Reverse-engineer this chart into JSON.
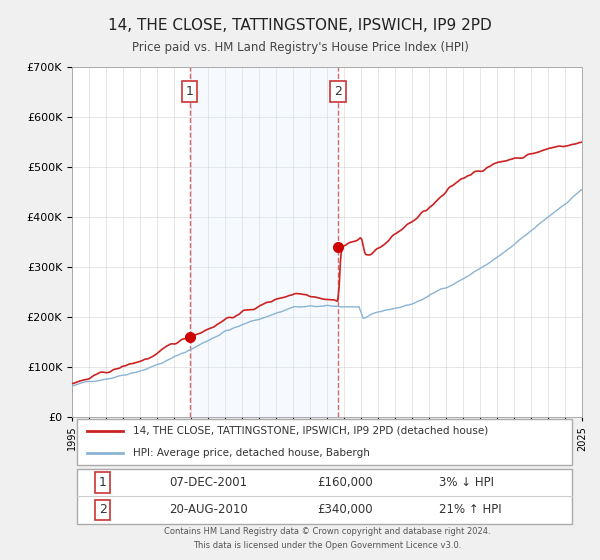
{
  "title": "14, THE CLOSE, TATTINGSTONE, IPSWICH, IP9 2PD",
  "subtitle": "Price paid vs. HM Land Registry's House Price Index (HPI)",
  "legend_line1": "14, THE CLOSE, TATTINGSTONE, IPSWICH, IP9 2PD (detached house)",
  "legend_line2": "HPI: Average price, detached house, Babergh",
  "table_row1_num": "1",
  "table_row1_date": "07-DEC-2001",
  "table_row1_price": "£160,000",
  "table_row1_hpi": "3% ↓ HPI",
  "table_row2_num": "2",
  "table_row2_date": "20-AUG-2010",
  "table_row2_price": "£340,000",
  "table_row2_hpi": "21% ↑ HPI",
  "footer1": "Contains HM Land Registry data © Crown copyright and database right 2024.",
  "footer2": "This data is licensed under the Open Government Licence v3.0.",
  "transaction1_year": 2001.92,
  "transaction1_price": 160000,
  "transaction2_year": 2010.64,
  "transaction2_price": 340000,
  "hpi_line_color": "#8ab4d4",
  "price_line_color": "#cc2222",
  "marker_color": "#cc0000",
  "shaded_region_color": "#ddeeff",
  "dashed_line_color": "#cc4444",
  "background_color": "#f0f0f0",
  "plot_background": "#ffffff",
  "grid_color": "#cccccc",
  "ymax": 700000,
  "ymin": 0,
  "xmin": 1995,
  "xmax": 2025
}
